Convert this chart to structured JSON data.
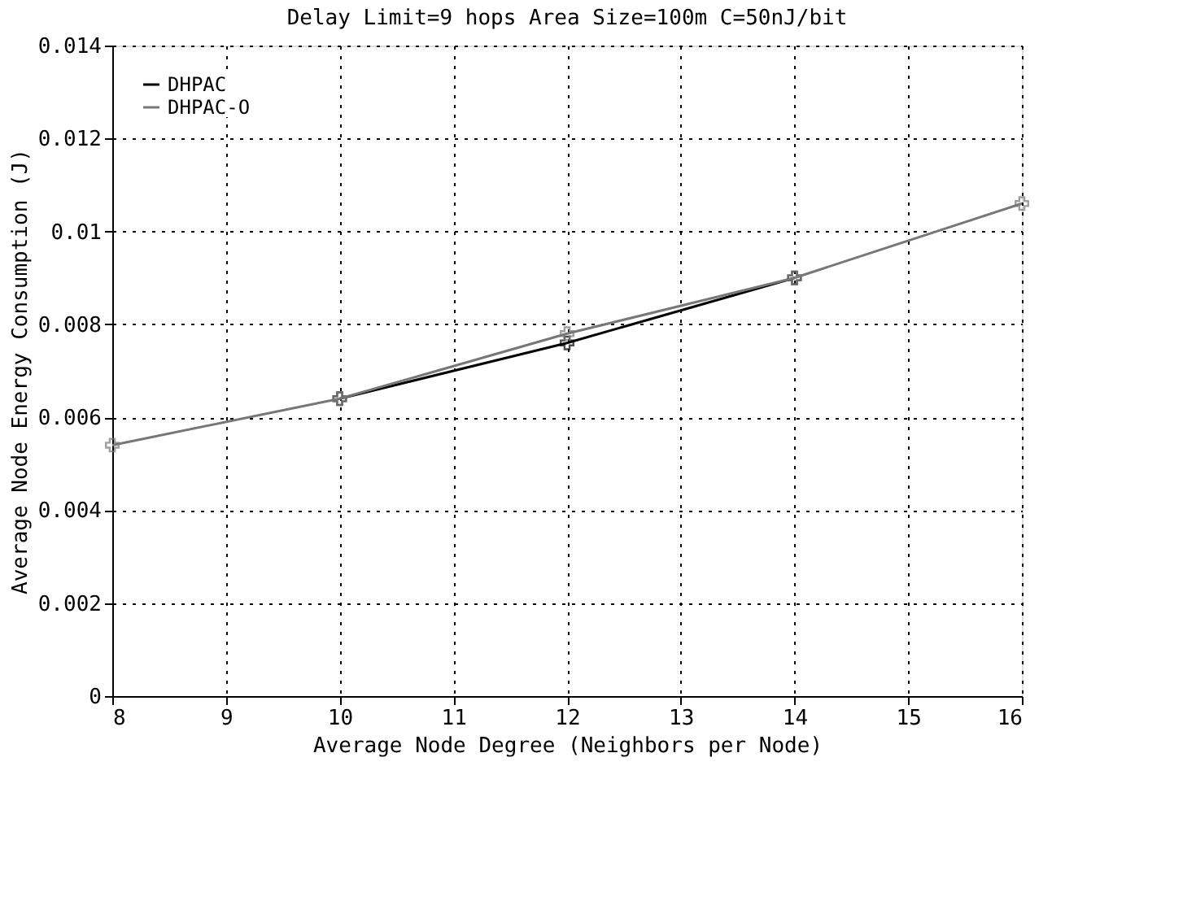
{
  "chart_data": {
    "type": "line",
    "title": "Delay Limit=9 hops      Area Size=100m      C=50nJ/bit",
    "xlabel": "Average Node Degree (Neighbors per Node)",
    "ylabel": "Average Node Energy Consumption (J)",
    "series": [
      {
        "name": "DHPAC",
        "color": "#000000",
        "x": [
          10,
          12,
          14
        ],
        "values": [
          0.0064,
          0.0076,
          0.009
        ],
        "marker": "cross"
      },
      {
        "name": "DHPAC-O",
        "color": "#777777",
        "x": [
          8,
          10,
          12,
          14,
          16
        ],
        "values": [
          0.0054,
          0.0064,
          0.0078,
          0.009,
          0.0106
        ],
        "marker": "cross"
      }
    ],
    "xlim": [
      8,
      16
    ],
    "xticks": [
      8,
      9,
      10,
      11,
      12,
      13,
      14,
      15,
      16
    ],
    "ylim": [
      0,
      0.014
    ],
    "yticks": [
      0,
      0.002,
      0.004,
      0.006,
      0.008,
      0.01,
      0.012,
      0.014
    ],
    "grid": true,
    "legend": "top left",
    "line_style": "solid"
  }
}
